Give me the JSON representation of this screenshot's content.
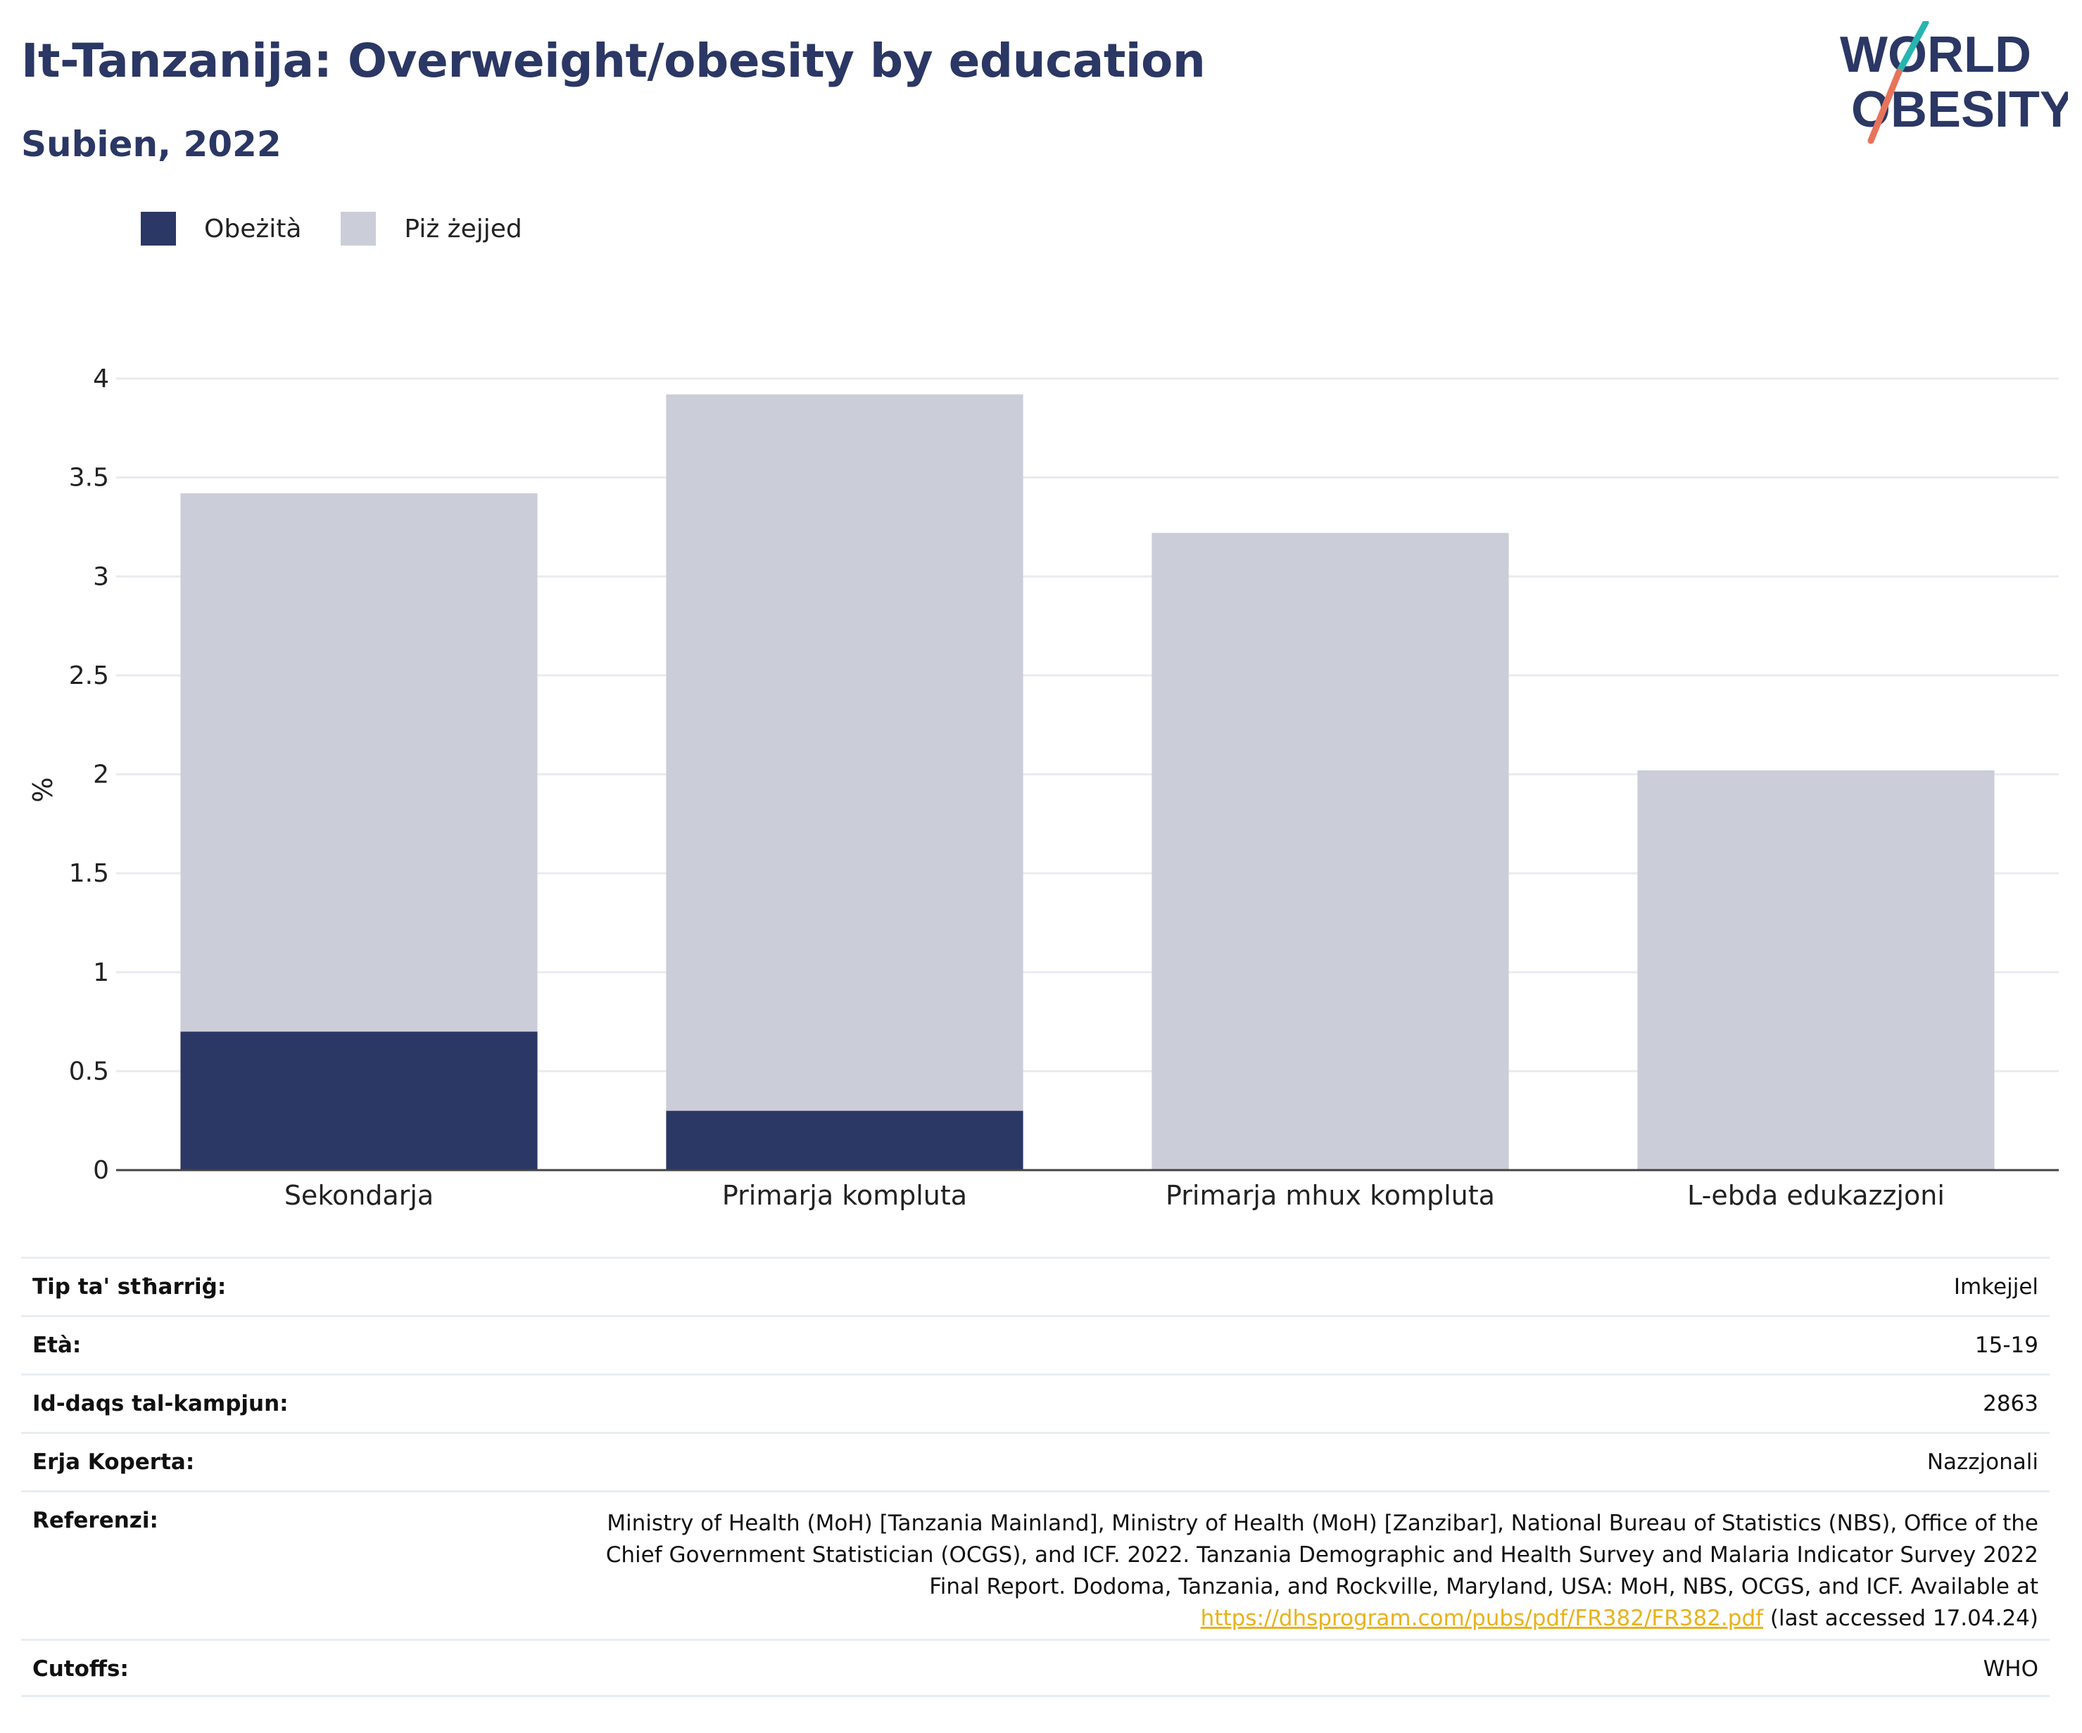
{
  "header": {
    "title": "It-Tanzanija: Overweight/obesity by education",
    "subtitle": "Subien, 2022"
  },
  "logo": {
    "line1": "WORLD",
    "line2": "OBESITY",
    "colors": {
      "navy": "#2b3764",
      "teal": "#27b5b0",
      "coral": "#e8735b"
    }
  },
  "legend": [
    {
      "label": "Obeżità",
      "color": "#2b3764"
    },
    {
      "label": "Piż żejjed",
      "color": "#cbcdd9"
    }
  ],
  "chart_data": {
    "type": "bar",
    "stacked": true,
    "categories": [
      "Sekondarja",
      "Primarja kompluta",
      "Primarja mhux kompluta",
      "L-ebda edukazzjoni"
    ],
    "series": [
      {
        "name": "Obeżità",
        "color": "#2b3764",
        "values": [
          0.7,
          0.3,
          0,
          0
        ]
      },
      {
        "name": "Piż żejjed",
        "color": "#cbcdd9",
        "values": [
          2.72,
          3.62,
          3.22,
          2.02
        ]
      }
    ],
    "ylabel": "%",
    "ylim": [
      0,
      4
    ],
    "yticks": [
      0,
      0.5,
      1,
      1.5,
      2,
      2.5,
      3,
      3.5,
      4
    ],
    "ytick_labels": [
      "0",
      "0.5",
      "1",
      "1.5",
      "2",
      "2.5",
      "3",
      "3.5",
      "4"
    ],
    "grid": true
  },
  "info": {
    "survey_type": {
      "label": "Tip ta' stħarriġ:",
      "value": "Imkejjel"
    },
    "age": {
      "label": "Età:",
      "value": "15-19"
    },
    "sample_size": {
      "label": "Id-daqs tal-kampjun:",
      "value": "2863"
    },
    "area": {
      "label": "Erja Koperta:",
      "value": "Nazzjonali"
    },
    "references": {
      "label": "Referenzi:",
      "text": "Ministry of Health (MoH) [Tanzania Mainland], Ministry of Health (MoH) [Zanzibar], National Bureau of Statistics (NBS), Office of the Chief Government Statistician (OCGS), and ICF. 2022. Tanzania Demographic and Health Survey and Malaria Indicator Survey 2022 Final Report. Dodoma, Tanzania, and Rockville, Maryland, USA: MoH, NBS, OCGS, and ICF. Available at",
      "link": "https://dhsprogram.com/pubs/pdf/FR382/FR382.pdf",
      "suffix": "(last accessed 17.04.24)"
    },
    "cutoffs": {
      "label": "Cutoffs:",
      "value": "WHO"
    }
  }
}
